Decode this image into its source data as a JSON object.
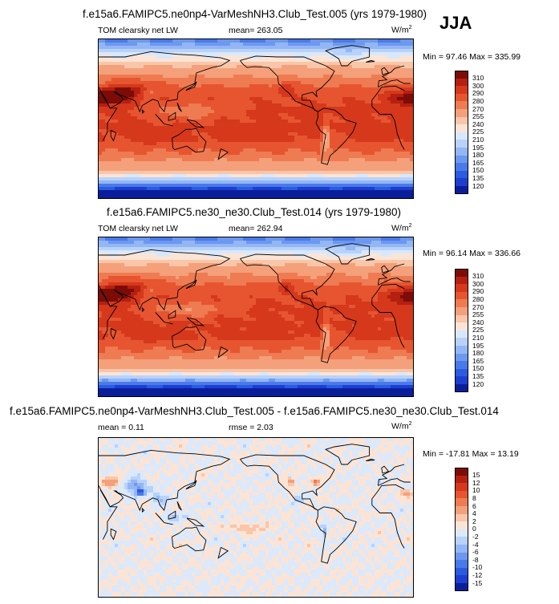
{
  "season": "JJA",
  "panels": [
    {
      "title": "f.e15a6.FAMIPC5.ne0np4-VarMeshNH3.Club_Test.005 (yrs 1979-1980)",
      "left_label": "TOM clearsky net LW",
      "mean_text": "mean= 263.05",
      "rmse_text": "",
      "units_base": "W/m",
      "units_exp": "2",
      "minmax": "Min =  97.46 Max = 335.99",
      "type": "field"
    },
    {
      "title": "f.e15a6.FAMIPC5.ne30_ne30.Club_Test.014 (yrs 1979-1980)",
      "left_label": "TOM clearsky net LW",
      "mean_text": "mean= 262.94",
      "rmse_text": "",
      "units_base": "W/m",
      "units_exp": "2",
      "minmax": "Min =  96.14 Max = 336.66",
      "type": "field"
    },
    {
      "title": "f.e15a6.FAMIPC5.ne0np4-VarMeshNH3.Club_Test.005 - f.e15a6.FAMIPC5.ne30_ne30.Club_Test.014",
      "left_label": "mean =   0.11",
      "mean_text": "",
      "rmse_text": "rmse =   2.03",
      "units_base": "W/m",
      "units_exp": "2",
      "minmax": "Min = -17.81 Max =  13.19",
      "type": "diff"
    }
  ],
  "chart_data": [
    {
      "type": "heatmap",
      "title": "f.e15a6.FAMIPC5.ne0np4-VarMeshNH3.Club_Test.005 (yrs 1979-1980)",
      "variable": "TOM clearsky net LW",
      "units": "W/m2",
      "mean": 263.05,
      "min": 97.46,
      "max": 335.99,
      "colorbar_levels": [
        120,
        135,
        150,
        165,
        180,
        195,
        210,
        225,
        240,
        255,
        270,
        280,
        290,
        300,
        310
      ],
      "colorbar_colors": [
        "#0a1e9a",
        "#1d3fd0",
        "#2b5be0",
        "#4a7aea",
        "#6d98f0",
        "#93b6f5",
        "#b8d2fa",
        "#d8e8fc",
        "#fbe4d5",
        "#f9c6a9",
        "#f4a07a",
        "#ee7b52",
        "#e65530",
        "#d5381b",
        "#b42010",
        "#7d0c07"
      ]
    },
    {
      "type": "heatmap",
      "title": "f.e15a6.FAMIPC5.ne30_ne30.Club_Test.014 (yrs 1979-1980)",
      "variable": "TOM clearsky net LW",
      "units": "W/m2",
      "mean": 262.94,
      "min": 96.14,
      "max": 336.66,
      "colorbar_levels": [
        120,
        135,
        150,
        165,
        180,
        195,
        210,
        225,
        240,
        255,
        270,
        280,
        290,
        300,
        310
      ],
      "colorbar_colors": [
        "#0a1e9a",
        "#1d3fd0",
        "#2b5be0",
        "#4a7aea",
        "#6d98f0",
        "#93b6f5",
        "#b8d2fa",
        "#d8e8fc",
        "#fbe4d5",
        "#f9c6a9",
        "#f4a07a",
        "#ee7b52",
        "#e65530",
        "#d5381b",
        "#b42010",
        "#7d0c07"
      ]
    },
    {
      "type": "heatmap",
      "title": "f.e15a6.FAMIPC5.ne0np4-VarMeshNH3.Club_Test.005 - f.e15a6.FAMIPC5.ne30_ne30.Club_Test.014",
      "units": "W/m2",
      "mean": 0.11,
      "rmse": 2.03,
      "min": -17.81,
      "max": 13.19,
      "colorbar_levels": [
        -15,
        -12,
        -10,
        -8,
        -6,
        -4,
        -2,
        0,
        2,
        4,
        6,
        8,
        10,
        12,
        15
      ],
      "colorbar_colors": [
        "#0a1e9a",
        "#1d3fd0",
        "#2b5be0",
        "#4a7aea",
        "#6d98f0",
        "#93b6f5",
        "#b8d2fa",
        "#dbe9fb",
        "#fbe4d5",
        "#f9c6a9",
        "#f4a07a",
        "#ee7b52",
        "#e65530",
        "#d5381b",
        "#b42010",
        "#7d0c07"
      ]
    }
  ]
}
